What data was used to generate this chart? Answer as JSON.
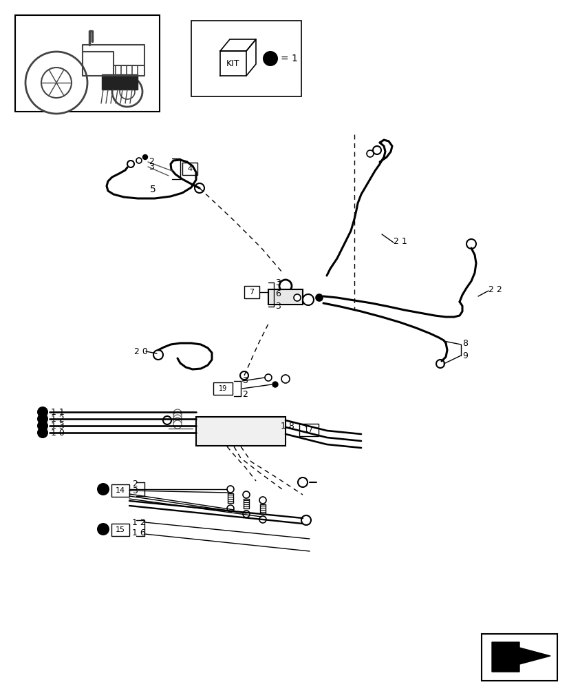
{
  "bg_color": "#ffffff",
  "line_color": "#000000",
  "fig_width": 8.28,
  "fig_height": 10.0,
  "dpi": 100
}
